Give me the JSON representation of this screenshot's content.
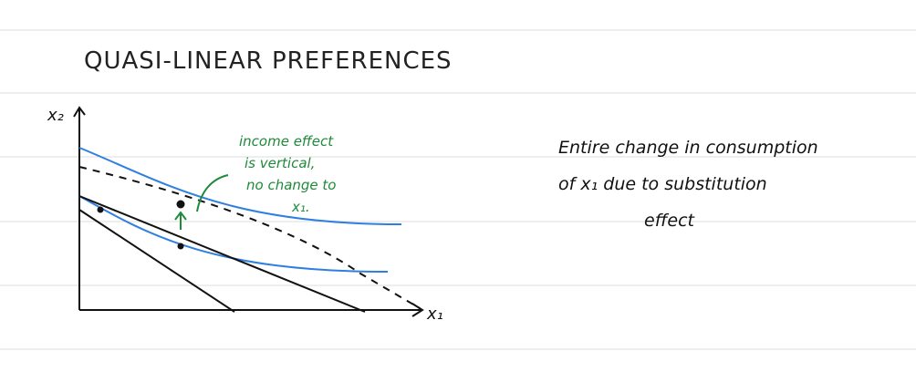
{
  "title": "QUASI-LINEAR PREFERENCES",
  "axes": {
    "y_label": "x₂",
    "x_label": "x₁"
  },
  "annotation": {
    "lines": [
      "income effect",
      "is vertical,",
      "no change to",
      "x₁."
    ]
  },
  "note": {
    "lines": [
      "Entire change in consumption",
      "of x₁ due to substitution",
      "effect"
    ]
  }
}
